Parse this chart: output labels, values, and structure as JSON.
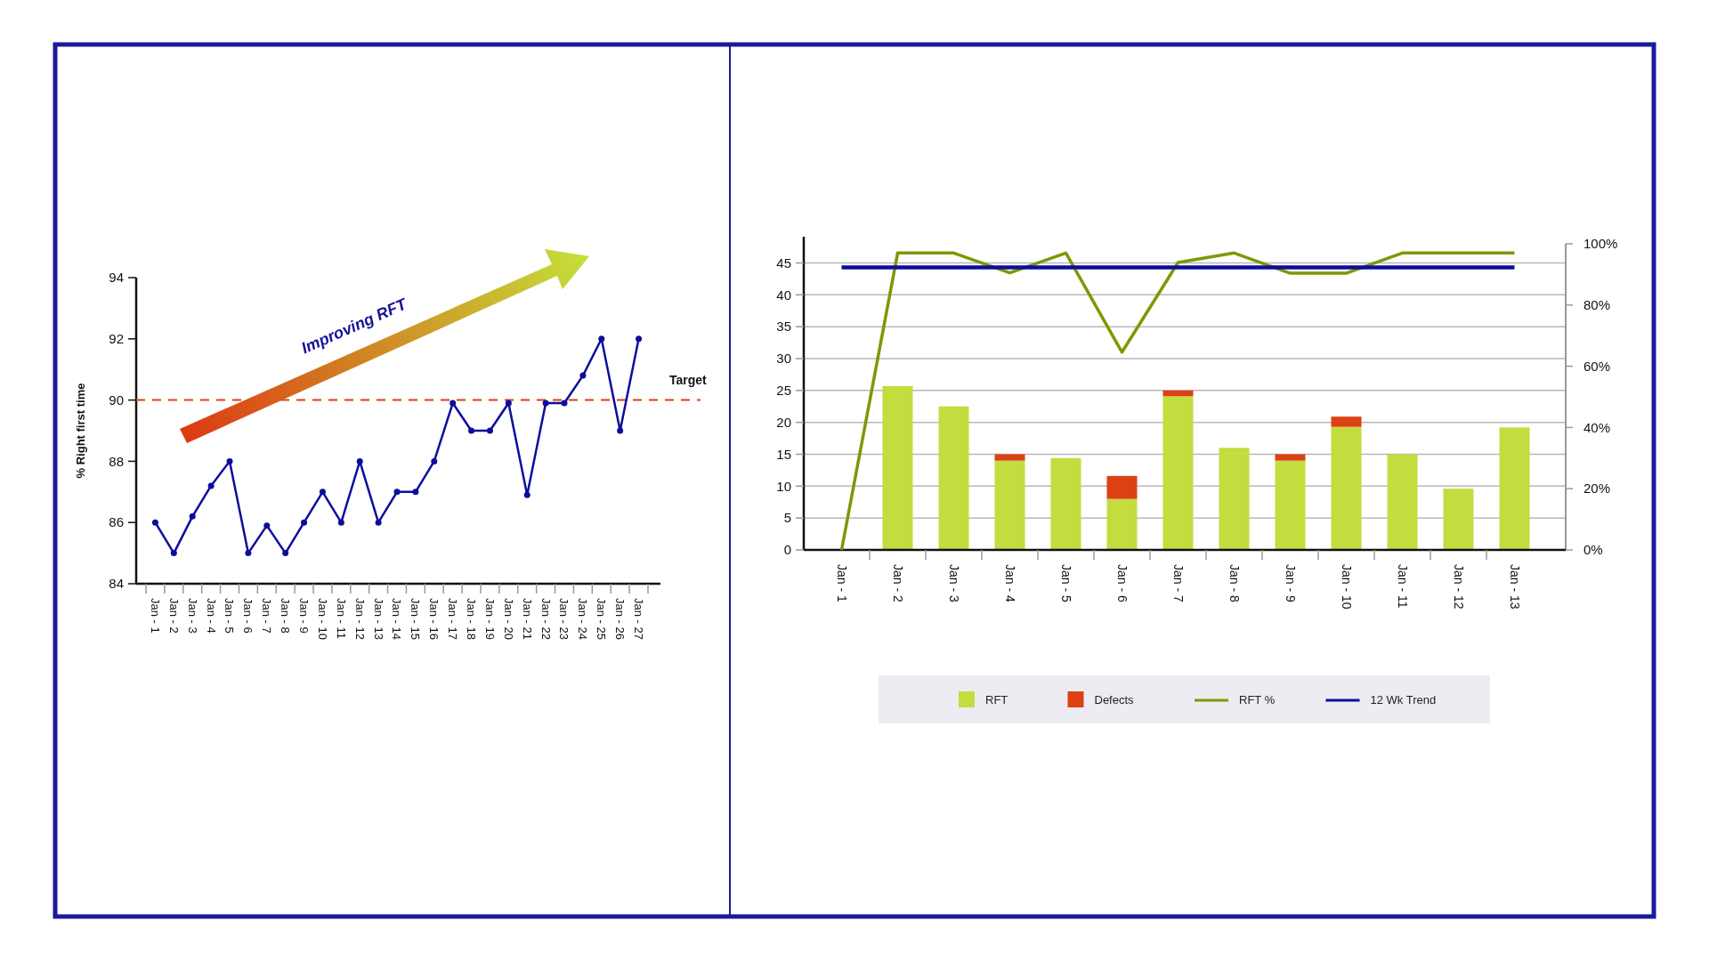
{
  "chart_data": [
    {
      "type": "line",
      "ylabel": "% Right first time",
      "categories": [
        "Jan - 1",
        "Jan - 2",
        "Jan - 3",
        "Jan - 4",
        "Jan - 5",
        "Jan - 6",
        "Jan - 7",
        "Jan - 8",
        "Jan - 9",
        "Jan - 10",
        "Jan - 11",
        "Jan - 12",
        "Jan - 13",
        "Jan - 14",
        "Jan - 15",
        "Jan - 16",
        "Jan - 17",
        "Jan - 18",
        "Jan - 19",
        "Jan - 20",
        "Jan - 21",
        "Jan - 22",
        "Jan - 23",
        "Jan - 24",
        "Jan - 25",
        "Jan - 26",
        "Jan - 27"
      ],
      "series": [
        {
          "color": "#0d0d9c",
          "values": [
            86,
            85,
            86.2,
            87.2,
            88,
            85,
            85.9,
            85,
            86,
            87,
            86,
            88,
            86,
            87,
            87,
            88,
            89.9,
            89,
            89,
            89.9,
            86.9,
            89.9,
            89.9,
            90.8,
            92,
            89,
            92
          ]
        }
      ],
      "marker": "circle",
      "ylim": [
        84,
        94
      ],
      "yticks": [
        84,
        86,
        88,
        90,
        92,
        94
      ],
      "ref_lines": [
        {
          "axis": "y",
          "value": 90,
          "label": "Target",
          "color": "#e03c1c",
          "line_style": "dashed"
        }
      ],
      "annotations": [
        "Improving RFT"
      ]
    },
    {
      "type": "bar",
      "stacked": true,
      "categories": [
        "Jan - 1",
        "Jan - 2",
        "Jan - 3",
        "Jan - 4",
        "Jan - 5",
        "Jan - 6",
        "Jan - 7",
        "Jan - 8",
        "Jan - 9",
        "Jan - 10",
        "Jan - 11",
        "Jan - 12",
        "Jan - 13"
      ],
      "series": [
        {
          "name": "RFT",
          "color": "#c4dc3e",
          "values": [
            0,
            25.7,
            22.5,
            14,
            14.4,
            8,
            24.1,
            16,
            14,
            19.3,
            15,
            9.6,
            19.2
          ]
        },
        {
          "name": "Defects",
          "color": "#dc4114",
          "values": [
            0,
            0,
            0,
            1,
            0,
            3.6,
            0.9,
            0,
            1,
            1.6,
            0,
            0,
            0
          ]
        },
        {
          "name": "RFT %",
          "type": "line",
          "axis": "y2",
          "color": "#7a9a01",
          "values": [
            0,
            97,
            97,
            90.5,
            97,
            64.6,
            93.9,
            97,
            90.4,
            90.4,
            97,
            97,
            97
          ]
        },
        {
          "name": "12 Wk Trend",
          "type": "line",
          "axis": "y2",
          "color": "#0d0d9c",
          "values": [
            92.3,
            92.3,
            92.3,
            92.3,
            92.3,
            92.3,
            92.3,
            92.3,
            92.3,
            92.3,
            92.3,
            92.3,
            92.3
          ]
        }
      ],
      "ylim": [
        0,
        48
      ],
      "yticks": [
        0,
        5,
        10,
        15,
        20,
        25,
        30,
        35,
        40,
        45
      ],
      "y2lim": [
        0,
        100
      ],
      "y2ticks": [
        {
          "value": 0,
          "label": "0%"
        },
        {
          "value": 20,
          "label": "20%"
        },
        {
          "value": 40,
          "label": "40%"
        },
        {
          "value": 60,
          "label": "60%"
        },
        {
          "value": 80,
          "label": "80%"
        },
        {
          "value": 100,
          "label": "100%"
        }
      ],
      "grid": "y",
      "legend": "bottom"
    }
  ]
}
